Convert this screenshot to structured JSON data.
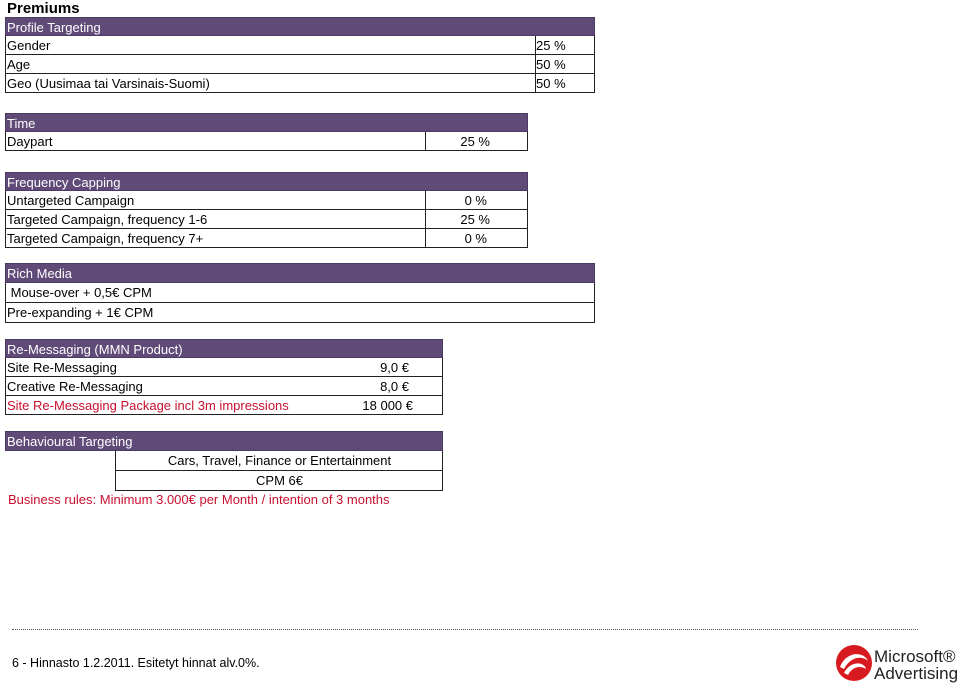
{
  "page_title": "Premiums",
  "sections": {
    "profile": {
      "header": "Profile Targeting",
      "rows": [
        {
          "label": "Gender",
          "value": "25 %"
        },
        {
          "label": "Age",
          "value": "50 %"
        },
        {
          "label": "Geo (Uusimaa tai Varsinais-Suomi)",
          "value": "50 %"
        }
      ]
    },
    "time": {
      "header": "Time",
      "rows": [
        {
          "label": "Daypart",
          "value": "25 %"
        }
      ]
    },
    "frequency": {
      "header": "Frequency Capping",
      "rows": [
        {
          "label": "Untargeted Campaign",
          "value": "0 %"
        },
        {
          "label": "Targeted Campaign, frequency 1-6",
          "value": "25 %"
        },
        {
          "label": "Targeted Campaign, frequency 7+",
          "value": "0 %"
        }
      ]
    },
    "rich_media": {
      "header": "Rich Media",
      "rows": [
        {
          "label": " Mouse-over + 0,5€ CPM"
        },
        {
          "label": "Pre-expanding + 1€ CPM"
        }
      ]
    },
    "remessaging": {
      "header": "Re-Messaging (MMN Product)",
      "rows": [
        {
          "label": "Site Re-Messaging",
          "value": "9,0 €"
        },
        {
          "label": "Creative Re-Messaging",
          "value": "8,0 €"
        },
        {
          "label": "Site Re-Messaging Package incl 3m impressions",
          "value": "18 000 €"
        }
      ]
    },
    "behavioural": {
      "header": "Behavioural Targeting",
      "line1": "Cars, Travel, Finance or Entertainment",
      "line2": "CPM 6€",
      "business_rules": "Business rules: Minimum 3.000€ per Month / intention of 3 months"
    }
  },
  "footer": {
    "text": "6 - Hinnasto 1.2.2011. Esitetyt hinnat alv.0%.",
    "logo_line1": "Microsoft®",
    "logo_line2": "Advertising"
  },
  "colors": {
    "header_bg": "#5f4a78",
    "highlight_red": "#c8102e",
    "logo_red": "#d71920"
  }
}
